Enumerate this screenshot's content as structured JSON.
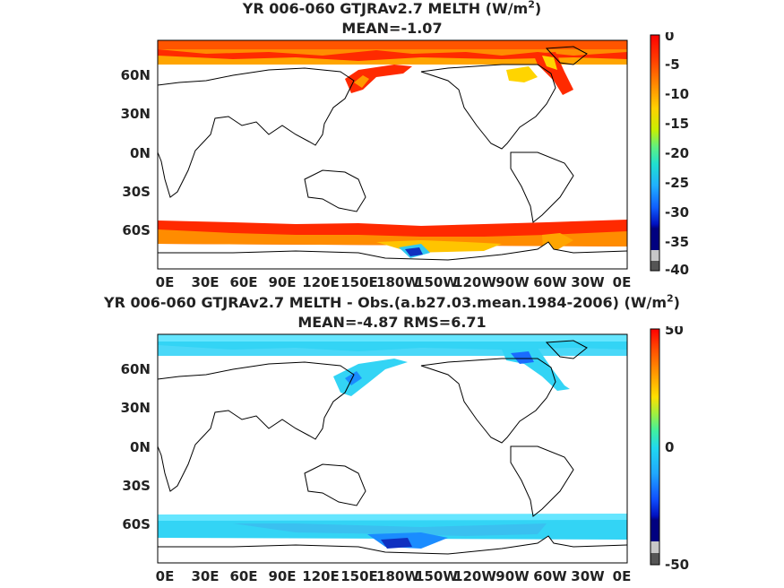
{
  "panels": [
    {
      "title_line1": "YR 006-060 GTJRAv2.7  MELTH (W/m",
      "title_sup": "2",
      "title_close": ")",
      "title_line2": "MEAN=-1.07",
      "colorbar_ticks": [
        "0",
        "-5",
        "-10",
        "-15",
        "-20",
        "-25",
        "-30",
        "-35",
        "-40"
      ],
      "colorbar_range": [
        -40,
        0
      ]
    },
    {
      "title_line1": "YR 006-060 GTJRAv2.7 MELTH - Obs.(a.b27.03.mean.1984-2006) (W/m",
      "title_sup": "2",
      "title_close": ")",
      "title_line2": "MEAN=-4.87 RMS=6.71",
      "colorbar_ticks": [
        "50",
        "0",
        "-50"
      ],
      "colorbar_range": [
        -50,
        50
      ]
    }
  ],
  "axes": {
    "lat_labels": [
      "60N",
      "30N",
      "0N",
      "30S",
      "60S"
    ],
    "lon_labels": [
      "0E",
      "30E",
      "60E",
      "90E",
      "120E",
      "150E",
      "180W",
      "150W",
      "120W",
      "90W",
      "60W",
      "30W",
      "0E"
    ]
  },
  "colors": {
    "top_main": "#ff2a00",
    "top_edge": "#ff8c00",
    "top_yellow": "#ffd400",
    "diff_main": "#33d4f5",
    "diff_light": "#66e6ff",
    "diff_deep": "#1a6cff",
    "deep_blue": "#1030c0"
  }
}
